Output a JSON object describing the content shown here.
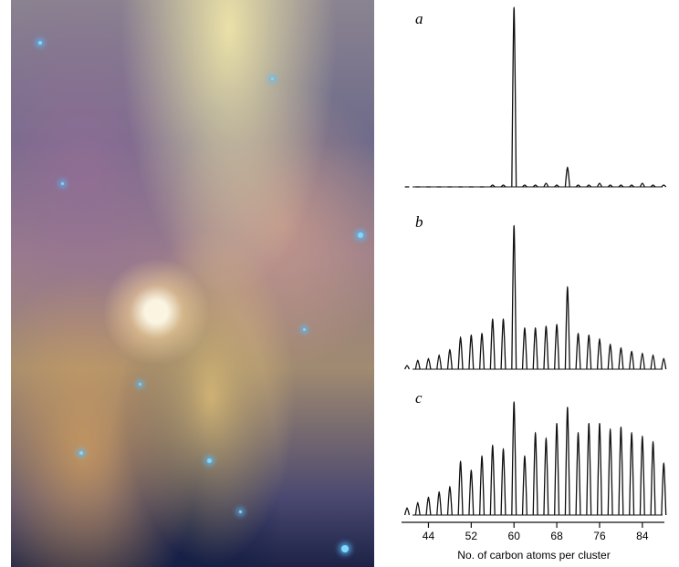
{
  "chart_data": [
    {
      "type": "spectrum",
      "title": "a",
      "color": "#111",
      "x": [
        40,
        42,
        44,
        46,
        48,
        50,
        52,
        54,
        56,
        58,
        60,
        62,
        64,
        66,
        68,
        70,
        72,
        74,
        76,
        78,
        80,
        82,
        84,
        86,
        88
      ],
      "values": [
        0,
        0,
        0,
        0,
        0,
        0,
        0,
        0,
        1,
        1,
        100,
        1,
        1,
        2,
        1,
        11,
        1,
        1,
        2,
        1,
        1,
        1,
        2,
        1,
        1
      ],
      "xlim": [
        38,
        90
      ],
      "ylim": [
        0,
        100
      ]
    },
    {
      "type": "spectrum",
      "title": "b",
      "color": "#111",
      "x": [
        40,
        42,
        44,
        46,
        48,
        50,
        52,
        54,
        56,
        58,
        60,
        62,
        64,
        66,
        68,
        70,
        72,
        74,
        76,
        78,
        80,
        82,
        84,
        86,
        88
      ],
      "values": [
        2,
        5,
        6,
        8,
        11,
        18,
        19,
        20,
        28,
        28,
        80,
        23,
        23,
        24,
        25,
        46,
        20,
        19,
        17,
        14,
        12,
        10,
        9,
        8,
        6
      ],
      "xlim": [
        38,
        90
      ],
      "ylim": [
        0,
        100
      ]
    },
    {
      "type": "spectrum",
      "title": "c",
      "color": "#111",
      "x": [
        40,
        42,
        44,
        46,
        48,
        50,
        52,
        54,
        56,
        58,
        60,
        62,
        64,
        66,
        68,
        70,
        72,
        74,
        76,
        78,
        80,
        82,
        84,
        86,
        88
      ],
      "values": [
        4,
        7,
        10,
        13,
        16,
        30,
        25,
        33,
        39,
        37,
        63,
        33,
        46,
        43,
        51,
        60,
        46,
        51,
        51,
        48,
        49,
        46,
        44,
        41,
        29
      ],
      "xlim": [
        38,
        90
      ],
      "ylim": [
        0,
        100
      ],
      "xticks": [
        44,
        52,
        60,
        68,
        76,
        84
      ],
      "xlabel": "No. of carbon atoms per cluster"
    }
  ]
}
